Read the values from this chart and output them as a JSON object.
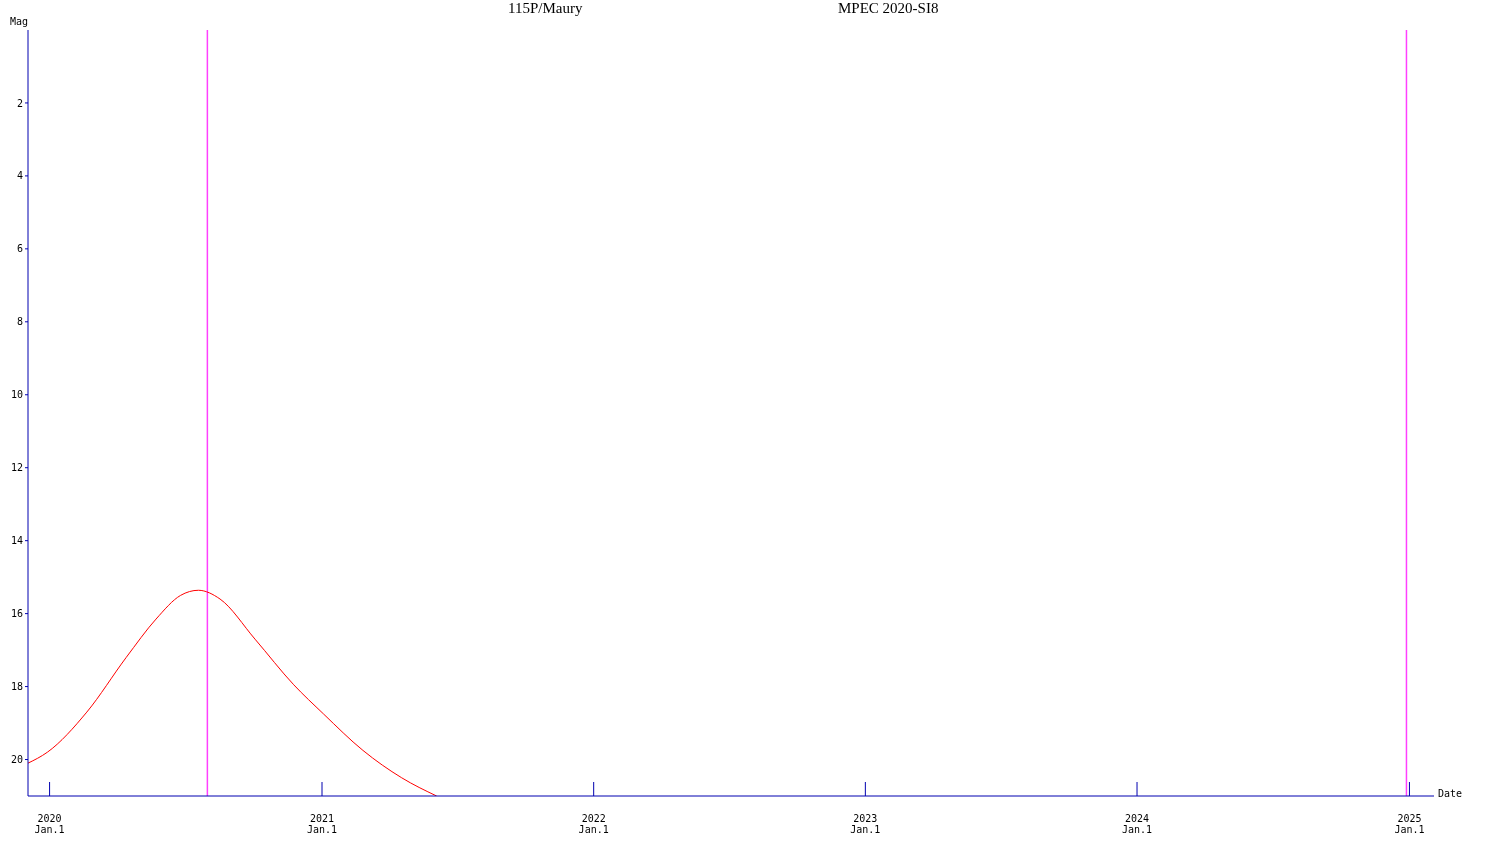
{
  "chart_data": {
    "type": "line",
    "title": "115P/Maury",
    "subtitle": "MPEC 2020-SI8",
    "xlabel": "Date",
    "ylabel": "Mag",
    "x": [
      "2019-12-03",
      "2019-12-29",
      "2020-02-20",
      "2020-04-13",
      "2020-05-23",
      "2020-06-25",
      "2020-07-19",
      "2020-08-17",
      "2020-10-03",
      "2020-11-24",
      "2021-01-03",
      "2021-02-25",
      "2021-04-18",
      "2021-06-04"
    ],
    "series": [
      {
        "color": "#ff0000",
        "values": [
          20.1,
          19.8,
          18.7,
          17.2,
          16.15,
          15.5,
          15.36,
          15.6,
          16.7,
          17.95,
          18.75,
          19.75,
          20.5,
          21.0
        ]
      }
    ],
    "xlim": [
      "2019-12-03",
      "2025-02-03"
    ],
    "xticks": [
      {
        "value": "2020-01-01",
        "label": "2020\nJan.1"
      },
      {
        "value": "2021-01-01",
        "label": "2021\nJan.1"
      },
      {
        "value": "2022-01-01",
        "label": "2022\nJan.1"
      },
      {
        "value": "2023-01-01",
        "label": "2023\nJan.1"
      },
      {
        "value": "2024-01-01",
        "label": "2024\nJan.1"
      },
      {
        "value": "2025-01-01",
        "label": "2025\nJan.1"
      }
    ],
    "ylim": [
      21,
      0
    ],
    "yticks": [
      2,
      4,
      6,
      8,
      10,
      12,
      14,
      16,
      18,
      20
    ],
    "ref_lines": [
      {
        "axis": "x",
        "value": "2020-07-31",
        "color": "#ff40ff"
      },
      {
        "axis": "x",
        "value": "2024-12-28",
        "color": "#ff40ff"
      }
    ]
  }
}
